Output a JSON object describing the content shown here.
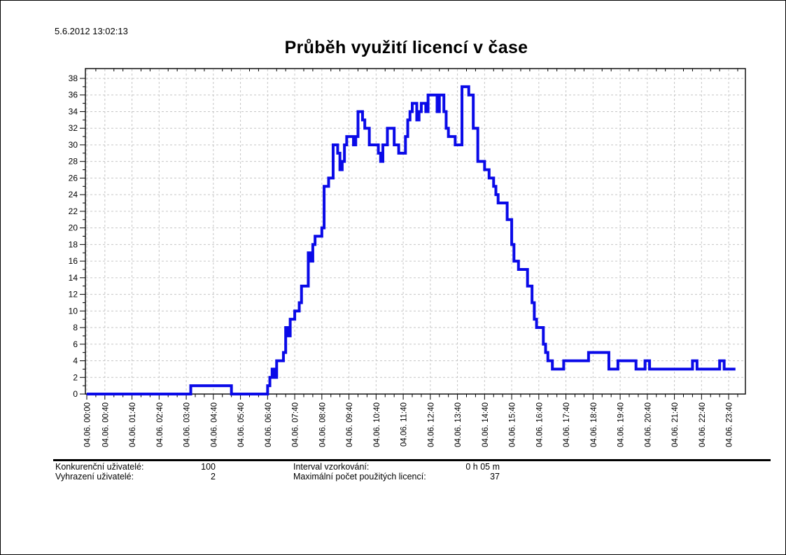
{
  "page": {
    "timestamp": "5.6.2012 13:02:13"
  },
  "chart_data": {
    "type": "line",
    "line_style": "step-after",
    "title": "Průběh využití licencí v čase",
    "xlabel": "",
    "ylabel": "",
    "ylim": [
      0,
      38
    ],
    "y_tick_step": 2,
    "y_minor_step": 1,
    "x_minor_step_minutes": 20,
    "grid": "dashed",
    "legend": "none",
    "line_color": "#0a0ae8",
    "grid_color": "#c6c6c6",
    "axis_color": "#000000",
    "x_tick_minutes": [
      0,
      40,
      100,
      160,
      220,
      280,
      340,
      400,
      460,
      520,
      580,
      640,
      700,
      760,
      820,
      880,
      940,
      1000,
      1060,
      1120,
      1180,
      1240,
      1300,
      1360,
      1420
    ],
    "x_tick_labels": [
      "04.06. 00:00",
      "04.06. 00:40",
      "04.06. 01:40",
      "04.06. 02:40",
      "04.06. 03:40",
      "04.06. 04:40",
      "04.06. 05:40",
      "04.06. 06:40",
      "04.06. 07:40",
      "04.06. 08:40",
      "04.06. 09:40",
      "04.06. 10:40",
      "04.06. 11:40",
      "04.06. 12:40",
      "04.06. 13:40",
      "04.06. 14:40",
      "04.06. 15:40",
      "04.06. 16:40",
      "04.06. 17:40",
      "04.06. 18:40",
      "04.06. 19:40",
      "04.06. 20:40",
      "04.06. 21:40",
      "04.06. 22:40",
      "04.06. 23:40"
    ],
    "points_minutes_value": [
      [
        0,
        0
      ],
      [
        230,
        1
      ],
      [
        320,
        0
      ],
      [
        400,
        1
      ],
      [
        405,
        2
      ],
      [
        410,
        3
      ],
      [
        415,
        2
      ],
      [
        420,
        4
      ],
      [
        435,
        5
      ],
      [
        440,
        8
      ],
      [
        445,
        7
      ],
      [
        450,
        9
      ],
      [
        460,
        10
      ],
      [
        470,
        11
      ],
      [
        475,
        13
      ],
      [
        490,
        17
      ],
      [
        495,
        16
      ],
      [
        500,
        18
      ],
      [
        505,
        19
      ],
      [
        520,
        20
      ],
      [
        525,
        25
      ],
      [
        535,
        26
      ],
      [
        545,
        30
      ],
      [
        555,
        29
      ],
      [
        560,
        27
      ],
      [
        565,
        28
      ],
      [
        570,
        30
      ],
      [
        575,
        31
      ],
      [
        590,
        30
      ],
      [
        595,
        31
      ],
      [
        600,
        34
      ],
      [
        610,
        33
      ],
      [
        615,
        32
      ],
      [
        625,
        30
      ],
      [
        645,
        29
      ],
      [
        650,
        28
      ],
      [
        655,
        30
      ],
      [
        665,
        32
      ],
      [
        680,
        30
      ],
      [
        690,
        29
      ],
      [
        705,
        31
      ],
      [
        710,
        33
      ],
      [
        715,
        34
      ],
      [
        720,
        35
      ],
      [
        730,
        33
      ],
      [
        735,
        34
      ],
      [
        740,
        35
      ],
      [
        750,
        34
      ],
      [
        755,
        36
      ],
      [
        775,
        34
      ],
      [
        780,
        36
      ],
      [
        790,
        34
      ],
      [
        795,
        32
      ],
      [
        800,
        31
      ],
      [
        815,
        30
      ],
      [
        830,
        37
      ],
      [
        845,
        36
      ],
      [
        855,
        32
      ],
      [
        865,
        28
      ],
      [
        880,
        27
      ],
      [
        890,
        26
      ],
      [
        900,
        25
      ],
      [
        905,
        24
      ],
      [
        910,
        23
      ],
      [
        930,
        21
      ],
      [
        940,
        18
      ],
      [
        945,
        16
      ],
      [
        955,
        15
      ],
      [
        975,
        13
      ],
      [
        985,
        11
      ],
      [
        990,
        9
      ],
      [
        995,
        8
      ],
      [
        1010,
        6
      ],
      [
        1015,
        5
      ],
      [
        1020,
        4
      ],
      [
        1030,
        3
      ],
      [
        1055,
        4
      ],
      [
        1110,
        5
      ],
      [
        1155,
        3
      ],
      [
        1175,
        4
      ],
      [
        1215,
        3
      ],
      [
        1235,
        4
      ],
      [
        1245,
        3
      ],
      [
        1340,
        4
      ],
      [
        1350,
        3
      ],
      [
        1400,
        4
      ],
      [
        1410,
        3
      ],
      [
        1435,
        3
      ]
    ]
  },
  "footer": {
    "left": [
      {
        "label": "Konkurenční uživatelé:",
        "value": "100"
      },
      {
        "label": "Vyhrazení uživatelé:",
        "value": "2"
      }
    ],
    "right": [
      {
        "label": "Interval vzorkování:",
        "value": "0 h 05 m"
      },
      {
        "label": "Maximální počet použitých licencí:",
        "value": "37"
      }
    ]
  }
}
